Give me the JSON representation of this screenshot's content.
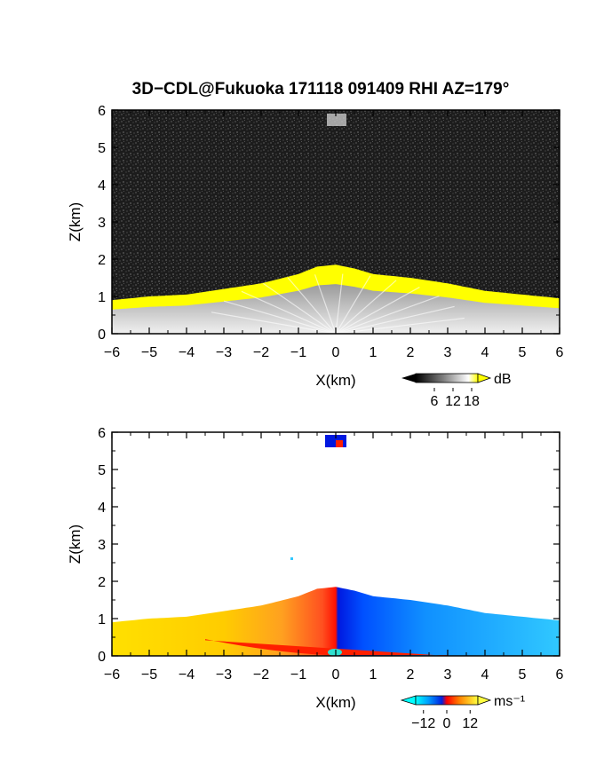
{
  "title": "3D−CDL@Fukuoka 171118 091409 RHI AZ=179°",
  "chart_data": [
    {
      "type": "heatmap",
      "field": "reflectivity",
      "xlabel": "X(km)",
      "ylabel": "Z(km)",
      "xlim": [
        -6,
        6
      ],
      "ylim": [
        0,
        6
      ],
      "x_ticks": [
        "−6",
        "−5",
        "−4",
        "−3",
        "−2",
        "−1",
        "0",
        "1",
        "2",
        "3",
        "4",
        "5",
        "6"
      ],
      "y_ticks": [
        "0",
        "1",
        "2",
        "3",
        "4",
        "5",
        "6"
      ],
      "echo_top_profile": {
        "x": [
          -6,
          -5,
          -4,
          -3,
          -2,
          -1,
          -0.5,
          0,
          0.5,
          1,
          2,
          3,
          4,
          5,
          6
        ],
        "z": [
          0.9,
          1.0,
          1.05,
          1.2,
          1.35,
          1.6,
          1.8,
          1.85,
          1.75,
          1.6,
          1.5,
          1.35,
          1.15,
          1.05,
          0.95
        ]
      },
      "colorbar": {
        "unit": "dB",
        "ticks": [
          "6",
          "12",
          "18"
        ],
        "range": [
          0,
          20
        ]
      },
      "colors": {
        "background": "#1e1e1e",
        "saturated": "#ffff00"
      }
    },
    {
      "type": "heatmap",
      "field": "doppler_velocity",
      "xlabel": "X(km)",
      "ylabel": "Z(km)",
      "xlim": [
        -6,
        6
      ],
      "ylim": [
        0,
        6
      ],
      "x_ticks": [
        "−6",
        "−5",
        "−4",
        "−3",
        "−2",
        "−1",
        "0",
        "1",
        "2",
        "3",
        "4",
        "5",
        "6"
      ],
      "y_ticks": [
        "0",
        "1",
        "2",
        "3",
        "4",
        "5",
        "6"
      ],
      "velocity_profile": {
        "x": [
          -6,
          -5,
          -4,
          -3,
          -2,
          -1,
          -0.3,
          0.3,
          1,
          2,
          3,
          4,
          5,
          6
        ],
        "v": [
          13,
          12,
          11,
          10,
          8,
          5,
          2,
          -2,
          -6,
          -8,
          -9,
          -10,
          -10,
          -11
        ]
      },
      "colorbar": {
        "unit": "ms⁻¹",
        "ticks": [
          "−12",
          "0",
          "12"
        ],
        "range": [
          -16,
          16
        ]
      },
      "colors": {
        "positive": "#ffd700",
        "zero": "#ff2000",
        "negative": "#00a0ff",
        "deep_negative": "#0020e0"
      }
    }
  ]
}
